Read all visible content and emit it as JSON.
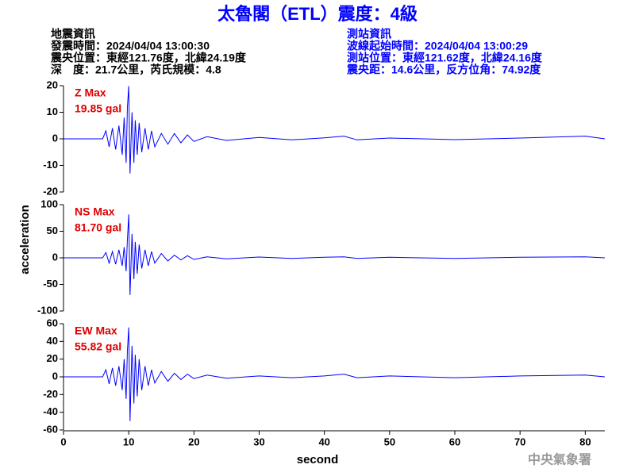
{
  "chart_data": {
    "type": "line",
    "title": "太魯閣（ETL）震度：4級",
    "info_left": [
      "地震資訊",
      "發震時間：2024/04/04 13:00:30",
      "震央位置：東經121.76度，北緯24.19度",
      "深　度：21.7公里，芮氏規模：4.8"
    ],
    "info_right": [
      "測站資訊",
      "波線起始時間：2024/04/04 13:00:29",
      "測站位置：東經121.62度，北緯24.16度",
      "震央距：14.6公里，反方位角：74.92度"
    ],
    "xlabel": "second",
    "ylabel": "acceleration",
    "watermark": "中央氣象署",
    "xlim": [
      0,
      83
    ],
    "xticks": [
      0,
      10,
      20,
      30,
      40,
      50,
      60,
      70,
      80
    ],
    "x": [
      0,
      6,
      6.5,
      7,
      7.5,
      8,
      8.5,
      9,
      9.3,
      9.6,
      9.8,
      10,
      10.2,
      10.5,
      10.8,
      11,
      11.3,
      11.6,
      12,
      12.5,
      13,
      13.5,
      14,
      15,
      16,
      17,
      18,
      19,
      20,
      22,
      25,
      30,
      35,
      40,
      43,
      45,
      50,
      60,
      70,
      80,
      83
    ],
    "series": [
      {
        "name": "Z Max",
        "max_label": "19.85 gal",
        "color": "#0000ff",
        "ylim": [
          -20,
          20
        ],
        "yticks": [
          -20,
          -10,
          0,
          10,
          20
        ],
        "values": [
          0,
          0,
          3,
          -3,
          4,
          -4,
          5,
          -6,
          8,
          -9,
          12,
          19.85,
          -13,
          10,
          -9,
          7,
          -6,
          6,
          -5,
          4,
          -4,
          3,
          -3,
          2,
          -2,
          2,
          -1.5,
          1.5,
          -1,
          0.8,
          -0.6,
          0.5,
          -0.4,
          0.4,
          1,
          -0.4,
          0.3,
          -0.3,
          0.3,
          1,
          0
        ]
      },
      {
        "name": "NS Max",
        "max_label": "81.70 gal",
        "color": "#0000ff",
        "ylim": [
          -100,
          100
        ],
        "yticks": [
          -100,
          -50,
          0,
          50,
          100
        ],
        "values": [
          0,
          0,
          10,
          -10,
          12,
          -12,
          15,
          -15,
          20,
          -25,
          35,
          81.7,
          -70,
          45,
          -40,
          30,
          -30,
          25,
          -20,
          15,
          -15,
          12,
          -10,
          8,
          -6,
          5,
          -4,
          4,
          -3,
          2,
          -2,
          1.5,
          -1,
          1,
          2,
          -1,
          1,
          -1,
          1,
          2,
          0
        ]
      },
      {
        "name": "EW Max",
        "max_label": "55.82 gal",
        "color": "#0000ff",
        "ylim": [
          -60,
          60
        ],
        "yticks": [
          -60,
          -40,
          -20,
          0,
          20,
          40,
          60
        ],
        "values": [
          0,
          0,
          8,
          -8,
          10,
          -10,
          12,
          -15,
          20,
          -25,
          30,
          55.82,
          -50,
          35,
          -30,
          25,
          -22,
          20,
          -15,
          12,
          -10,
          8,
          -7,
          6,
          -5,
          4,
          -3,
          3,
          -2,
          2,
          -1.5,
          1,
          -1,
          1,
          3,
          -1,
          1,
          -1,
          1,
          2,
          0
        ]
      }
    ]
  }
}
